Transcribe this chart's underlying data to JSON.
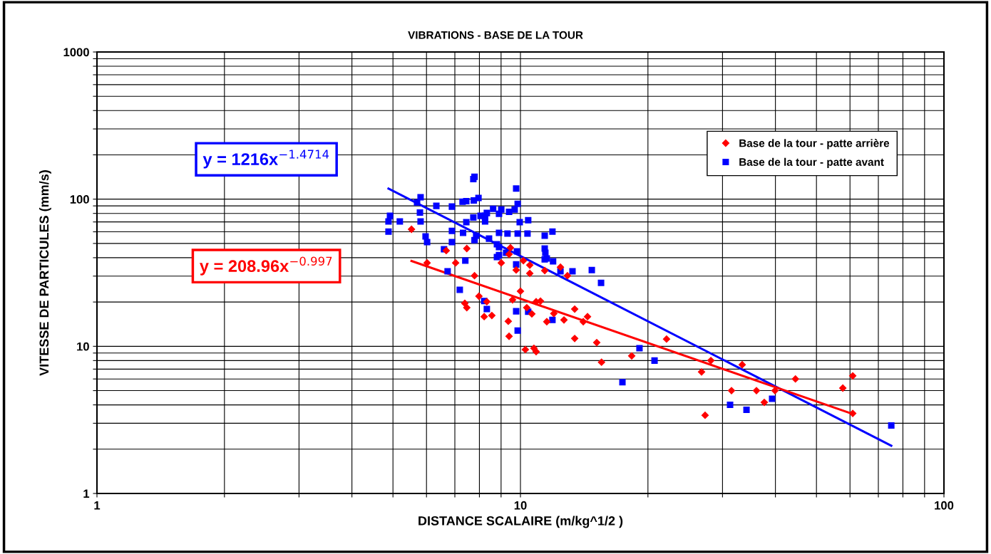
{
  "chart_data": {
    "type": "scatter",
    "title": "VIBRATIONS - BASE DE LA TOUR",
    "xlabel": "DISTANCE SCALAIRE (m/kg^1/2 )",
    "ylabel": "VITESSE DE PARTICULES (mm/s)",
    "log": "xy",
    "grid": true,
    "legend": "top right",
    "xlim": [
      1,
      100
    ],
    "ylim": [
      1,
      1000
    ],
    "xticks": [
      1,
      {
        "value": 2,
        "label": null
      },
      {
        "value": 3,
        "label": null
      },
      {
        "value": 4,
        "label": null
      },
      {
        "value": 5,
        "label": null
      },
      {
        "value": 6,
        "label": null
      },
      {
        "value": 7,
        "label": null
      },
      {
        "value": 8,
        "label": null
      },
      {
        "value": 9,
        "label": null
      },
      10,
      {
        "value": 20,
        "label": null
      },
      {
        "value": 30,
        "label": null
      },
      {
        "value": 40,
        "label": null
      },
      {
        "value": 50,
        "label": null
      },
      {
        "value": 60,
        "label": null
      },
      {
        "value": 70,
        "label": null
      },
      {
        "value": 80,
        "label": null
      },
      {
        "value": 90,
        "label": null
      },
      100
    ],
    "yticks": [
      1,
      {
        "value": 2,
        "label": null
      },
      {
        "value": 3,
        "label": null
      },
      {
        "value": 4,
        "label": null
      },
      {
        "value": 5,
        "label": null
      },
      {
        "value": 6,
        "label": null
      },
      {
        "value": 7,
        "label": null
      },
      {
        "value": 8,
        "label": null
      },
      {
        "value": 9,
        "label": null
      },
      10,
      {
        "value": 20,
        "label": null
      },
      {
        "value": 30,
        "label": null
      },
      {
        "value": 40,
        "label": null
      },
      {
        "value": 50,
        "label": null
      },
      {
        "value": 60,
        "label": null
      },
      {
        "value": 70,
        "label": null
      },
      {
        "value": 80,
        "label": null
      },
      {
        "value": 90,
        "label": null
      },
      100,
      {
        "value": 200,
        "label": null
      },
      {
        "value": 300,
        "label": null
      },
      {
        "value": 400,
        "label": null
      },
      {
        "value": 500,
        "label": null
      },
      {
        "value": 600,
        "label": null
      },
      {
        "value": 700,
        "label": null
      },
      {
        "value": 800,
        "label": null
      },
      {
        "value": 900,
        "label": null
      },
      1000
    ],
    "annotations": [
      "y = 1216x$^{−1.4714}$",
      "y = 208.96x$^{−0.997}$"
    ],
    "series": [
      {
        "name": "Base de la tour - patte arrière",
        "marker": "diamond",
        "color": "#ff0000",
        "x": [
          5.53,
          6.02,
          6.68,
          7.03,
          7.47,
          7.79,
          7.39,
          7.47,
          7.98,
          8.33,
          8.21,
          8.56,
          9.01,
          9.47,
          9.4,
          9.77,
          10.16,
          10.52,
          10.52,
          10,
          9.58,
          9.36,
          9.4,
          10.35,
          10.64,
          10.89,
          11.15,
          11.54,
          11.99,
          11.41,
          12.43,
          12.91,
          12.67,
          13.43,
          14.07,
          14.4,
          13.43,
          15.14,
          10.27,
          10.76,
          10.89,
          15.54,
          18.31,
          22.13,
          28.16,
          26.77,
          27.29,
          33.39,
          31.5,
          36.08,
          37.65,
          39.9,
          44.6,
          57.7,
          60.9,
          60.9
        ],
        "values": [
          62.4,
          36.9,
          44.7,
          36.9,
          46.2,
          30.2,
          19.6,
          18.3,
          21.9,
          20.1,
          15.9,
          16.2,
          36.9,
          46.7,
          42.2,
          33.0,
          38.2,
          35.6,
          31.3,
          23.7,
          20.7,
          14.8,
          11.7,
          18.3,
          16.6,
          20.1,
          20.3,
          14.7,
          16.7,
          32.7,
          34.5,
          30.2,
          15.1,
          17.9,
          14.7,
          15.9,
          11.3,
          10.6,
          9.5,
          9.7,
          9.2,
          7.8,
          8.6,
          11.2,
          8.0,
          6.7,
          3.4,
          7.5,
          5.0,
          5.0,
          4.16,
          5.0,
          6.0,
          5.2,
          6.3,
          3.5
        ]
      },
      {
        "name": "Base de la tour - patte avant",
        "marker": "square",
        "color": "#0000ff",
        "x": [
          4.88,
          4.92,
          4.88,
          5.19,
          5.81,
          5.7,
          5.79,
          5.81,
          5.97,
          6.02,
          6.33,
          6.6,
          6.73,
          6.89,
          6.89,
          6.89,
          7.19,
          7.3,
          7.45,
          7.45,
          7.32,
          7.41,
          7.74,
          7.79,
          7.76,
          7.96,
          7.74,
          8.05,
          8.25,
          8.33,
          8.25,
          7.79,
          7.86,
          8.21,
          8.33,
          8.43,
          8.62,
          9.01,
          8.9,
          9.4,
          9.69,
          9.77,
          9.85,
          9.96,
          8.9,
          9.32,
          9.85,
          10.39,
          10.43,
          8.8,
          8.9,
          9.25,
          9.81,
          8.9,
          8.8,
          9.77,
          9.77,
          10.43,
          9.85,
          11.9,
          11.41,
          11.9,
          11.41,
          11.45,
          11.41,
          11.54,
          11.94,
          12.43,
          13.27,
          14.74,
          15.5,
          19.1,
          20.73,
          17.41,
          31.26,
          34.18,
          39.29,
          75.1
        ],
        "values": [
          70.5,
          77,
          60.2,
          70.5,
          103,
          95,
          81,
          70.5,
          55.8,
          51,
          90,
          45.7,
          32.3,
          89,
          60.9,
          51,
          24.2,
          96,
          97,
          69.8,
          59,
          38.2,
          137,
          142,
          98,
          102,
          75,
          77,
          77,
          80.5,
          70.5,
          52.7,
          56.4,
          20.3,
          17.9,
          53.9,
          86,
          85,
          79.6,
          82,
          85,
          118,
          93,
          69.8,
          59,
          58.3,
          58.3,
          58.3,
          72,
          49.4,
          47.2,
          43.2,
          44.2,
          41.7,
          40.4,
          36.0,
          17.3,
          17.2,
          12.8,
          15.1,
          56.4,
          60.2,
          46.2,
          43.2,
          39.0,
          39.5,
          37.8,
          32.3,
          32.3,
          33.0,
          27.0,
          9.7,
          8.0,
          5.7,
          4.0,
          3.7,
          4.4,
          2.9
        ]
      },
      {
        "type": "line",
        "color": "#0000ff",
        "x": [
          4.88,
          75.1
        ],
        "values": [
          118,
          2.11
        ]
      },
      {
        "type": "line",
        "color": "#ff0000",
        "x": [
          5.53,
          60.9
        ],
        "values": [
          38.0,
          3.47
        ]
      }
    ]
  }
}
